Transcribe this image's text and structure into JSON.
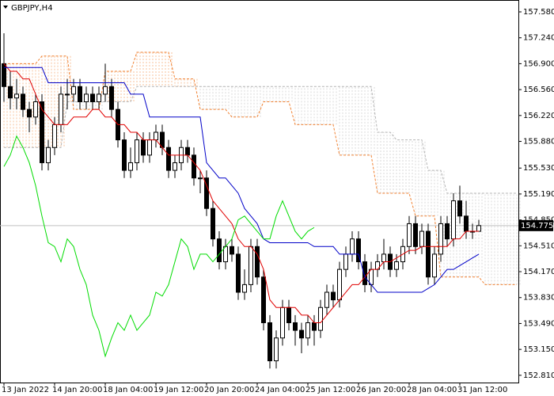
{
  "chart_data": {
    "type": "candlestick",
    "title": "GBPJPY,H4",
    "categories": [
      "13 Jan 2022",
      null,
      null,
      null,
      null,
      null,
      null,
      null,
      "14 Jan 20:00",
      null,
      null,
      null,
      null,
      null,
      null,
      null,
      "18 Jan 04:00",
      null,
      null,
      null,
      null,
      null,
      null,
      null,
      "19 Jan 12:00",
      null,
      null,
      null,
      null,
      null,
      null,
      null,
      "20 Jan 20:00",
      null,
      null,
      null,
      null,
      null,
      null,
      null,
      "24 Jan 04:00",
      null,
      null,
      null,
      null,
      null,
      null,
      null,
      "25 Jan 12:00",
      null,
      null,
      null,
      null,
      null,
      null,
      null,
      "26 Jan 20:00",
      null,
      null,
      null,
      null,
      null,
      null,
      null,
      "28 Jan 04:00",
      null,
      null,
      null,
      null,
      null,
      null,
      null,
      "31 Jan 12:00",
      null,
      null,
      null,
      null,
      null,
      null,
      null,
      null,
      null
    ],
    "open": [
      156.9,
      156.6,
      156.45,
      156.5,
      156.3,
      156.2,
      156.4,
      155.6,
      155.8,
      156.1,
      156.5,
      156.5,
      156.6,
      156.4,
      156.5,
      156.4,
      156.5,
      156.6,
      156.3,
      155.9,
      155.5,
      155.6,
      155.9,
      155.7,
      155.9,
      156.0,
      155.8,
      155.5,
      155.6,
      155.8,
      155.7,
      155.4,
      155.4,
      155.0,
      154.6,
      154.3,
      154.5,
      154.4,
      153.9,
      154.0,
      154.5,
      154.1,
      153.5,
      153.0,
      153.3,
      153.7,
      153.5,
      153.4,
      153.3,
      153.5,
      153.4,
      153.7,
      153.9,
      153.8,
      154.2,
      154.4,
      154.6,
      154.3,
      154.0,
      154.2,
      154.3,
      154.4,
      154.2,
      154.3,
      154.5,
      154.8,
      154.5,
      154.7,
      154.1,
      154.4,
      154.8,
      154.6,
      155.1,
      154.9,
      154.7,
      154.7,
      null,
      null,
      null,
      null,
      null,
      null
    ],
    "high": [
      157.3,
      156.8,
      156.7,
      156.6,
      156.4,
      156.5,
      156.5,
      155.9,
      156.2,
      156.6,
      156.7,
      156.7,
      156.7,
      156.6,
      156.6,
      156.6,
      156.9,
      156.7,
      156.4,
      156.0,
      155.8,
      156.0,
      156.0,
      156.0,
      156.1,
      156.1,
      155.9,
      155.7,
      155.9,
      155.9,
      155.8,
      155.5,
      155.5,
      155.1,
      154.7,
      154.6,
      154.6,
      154.5,
      154.2,
      154.6,
      154.6,
      154.2,
      153.6,
      153.4,
      153.8,
      153.8,
      153.6,
      153.5,
      153.6,
      153.6,
      153.8,
      154.0,
      154.0,
      154.3,
      154.5,
      154.7,
      154.7,
      154.4,
      154.3,
      154.4,
      154.6,
      154.5,
      154.4,
      154.6,
      154.9,
      154.9,
      154.8,
      154.8,
      154.5,
      154.9,
      154.9,
      155.2,
      155.3,
      155.1,
      154.8,
      154.85,
      null,
      null,
      null,
      null,
      null,
      null
    ],
    "low": [
      156.4,
      156.3,
      156.3,
      156.2,
      156.0,
      156.1,
      155.5,
      155.5,
      155.7,
      156.0,
      156.3,
      156.4,
      156.3,
      156.3,
      156.3,
      156.3,
      156.4,
      156.2,
      155.8,
      155.4,
      155.4,
      155.5,
      155.6,
      155.6,
      155.8,
      155.7,
      155.4,
      155.4,
      155.5,
      155.6,
      155.3,
      155.2,
      154.9,
      154.5,
      154.2,
      154.2,
      154.3,
      153.8,
      153.8,
      153.9,
      154.0,
      153.4,
      152.9,
      152.9,
      153.2,
      153.4,
      153.2,
      153.1,
      153.2,
      153.2,
      153.3,
      153.6,
      153.7,
      153.7,
      154.1,
      154.3,
      154.2,
      153.9,
      153.9,
      154.1,
      154.2,
      154.1,
      154.1,
      154.2,
      154.4,
      154.4,
      154.4,
      154.0,
      154.0,
      154.3,
      154.5,
      154.5,
      154.8,
      154.6,
      154.6,
      154.7,
      null,
      null,
      null,
      null,
      null,
      null
    ],
    "close": [
      156.6,
      156.45,
      156.5,
      156.3,
      156.2,
      156.4,
      155.6,
      155.8,
      156.1,
      156.5,
      156.5,
      156.6,
      156.4,
      156.5,
      156.4,
      156.5,
      156.6,
      156.3,
      155.9,
      155.5,
      155.6,
      155.9,
      155.7,
      155.9,
      156.0,
      155.8,
      155.5,
      155.6,
      155.8,
      155.7,
      155.4,
      155.4,
      155.0,
      154.6,
      154.3,
      154.5,
      154.4,
      153.9,
      154.0,
      154.5,
      154.1,
      153.5,
      153.0,
      153.3,
      153.7,
      153.5,
      153.4,
      153.3,
      153.5,
      153.4,
      153.7,
      153.9,
      153.8,
      154.2,
      154.4,
      154.6,
      154.3,
      154.0,
      154.2,
      154.3,
      154.4,
      154.2,
      154.3,
      154.5,
      154.8,
      154.5,
      154.7,
      154.1,
      154.4,
      154.8,
      154.6,
      155.1,
      154.9,
      154.7,
      154.7,
      154.775,
      null,
      null,
      null,
      null,
      null,
      null
    ],
    "lines": [
      {
        "color": "#e00000",
        "values": [
          156.9,
          156.8,
          156.8,
          156.7,
          156.7,
          156.5,
          156.3,
          156.2,
          156.1,
          156.1,
          156.1,
          156.2,
          156.2,
          156.2,
          156.3,
          156.3,
          156.2,
          156.2,
          156.1,
          156.1,
          156.0,
          156.0,
          155.9,
          155.9,
          155.9,
          155.8,
          155.7,
          155.7,
          155.7,
          155.7,
          155.6,
          155.5,
          155.3,
          155.1,
          155.0,
          154.9,
          154.8,
          154.6,
          154.5,
          154.5,
          154.4,
          154.2,
          153.8,
          153.7,
          153.7,
          153.7,
          153.7,
          153.6,
          153.6,
          153.5,
          153.5,
          153.6,
          153.7,
          153.8,
          153.9,
          154.0,
          154.0,
          154.1,
          154.2,
          154.2,
          154.3,
          154.3,
          154.35,
          154.4,
          154.45,
          154.45,
          154.5,
          154.5,
          154.5,
          154.5,
          154.5,
          154.6,
          154.6,
          154.7,
          154.7,
          154.7,
          null,
          null,
          null,
          null,
          null,
          null
        ]
      },
      {
        "color": "#0000c8",
        "values": [
          156.85,
          156.85,
          156.85,
          156.85,
          156.85,
          156.85,
          156.85,
          156.65,
          156.65,
          156.65,
          156.65,
          156.65,
          156.65,
          156.65,
          156.65,
          156.65,
          156.65,
          156.65,
          156.65,
          156.65,
          156.5,
          156.5,
          156.5,
          156.2,
          156.2,
          156.2,
          156.2,
          156.2,
          156.2,
          156.2,
          156.2,
          156.2,
          155.6,
          155.5,
          155.4,
          155.4,
          155.3,
          155.2,
          155.0,
          154.9,
          154.8,
          154.6,
          154.55,
          154.55,
          154.55,
          154.55,
          154.55,
          154.55,
          154.55,
          154.5,
          154.5,
          154.5,
          154.5,
          154.4,
          154.4,
          154.4,
          154.4,
          154.1,
          154.0,
          153.9,
          153.9,
          153.9,
          153.9,
          153.9,
          153.9,
          153.9,
          153.9,
          153.95,
          154.0,
          154.1,
          154.2,
          154.2,
          154.25,
          154.3,
          154.35,
          154.4,
          null,
          null,
          null,
          null,
          null,
          null
        ]
      },
      {
        "color": "#00dc00",
        "values": [
          155.55,
          155.7,
          155.95,
          155.8,
          155.6,
          155.3,
          154.9,
          154.55,
          154.5,
          154.3,
          154.6,
          154.5,
          154.2,
          154.0,
          153.6,
          153.4,
          153.06,
          153.3,
          153.5,
          153.4,
          153.6,
          153.4,
          153.5,
          153.6,
          153.9,
          153.85,
          154.0,
          154.3,
          154.6,
          154.5,
          154.2,
          154.4,
          154.4,
          154.3,
          154.4,
          154.5,
          154.6,
          154.85,
          154.9,
          154.8,
          154.7,
          154.6,
          154.6,
          154.9,
          155.1,
          154.9,
          154.7,
          154.6,
          154.7,
          154.75,
          null,
          null,
          null,
          null,
          null,
          null,
          null,
          null,
          null,
          null,
          null,
          null,
          null,
          null,
          null,
          null,
          null,
          null,
          null,
          null,
          null,
          null,
          null,
          null,
          null,
          null,
          null,
          null,
          null,
          null,
          null,
          null
        ]
      }
    ],
    "cloud": {
      "span_a": {
        "color": "#f08030",
        "values": [
          156.9,
          156.9,
          156.9,
          156.9,
          156.9,
          156.9,
          157.0,
          157.0,
          157.0,
          157.0,
          157.0,
          156.3,
          156.3,
          156.3,
          156.3,
          156.3,
          156.8,
          156.8,
          156.8,
          156.8,
          156.8,
          157.05,
          157.05,
          157.05,
          157.05,
          157.05,
          157.05,
          156.7,
          156.7,
          156.7,
          156.7,
          156.3,
          156.3,
          156.3,
          156.3,
          156.3,
          156.2,
          156.2,
          156.2,
          156.2,
          156.2,
          156.4,
          156.4,
          156.4,
          156.4,
          156.4,
          156.1,
          156.1,
          156.1,
          156.1,
          156.1,
          156.1,
          156.1,
          155.7,
          155.7,
          155.7,
          155.7,
          155.7,
          155.7,
          155.2,
          155.2,
          155.2,
          155.2,
          155.2,
          155.2,
          154.9,
          154.9,
          154.9,
          154.9,
          154.1,
          154.1,
          154.1,
          154.1,
          154.1,
          154.1,
          154.1,
          154.0,
          154.0,
          154.0,
          154.0,
          154.0,
          154.0
        ]
      },
      "span_b": {
        "color": "#b4b4b4",
        "values": [
          155.8,
          155.8,
          155.8,
          155.8,
          155.8,
          155.8,
          155.8,
          155.8,
          155.8,
          155.8,
          156.4,
          156.4,
          156.4,
          156.4,
          156.4,
          156.4,
          156.4,
          156.4,
          156.4,
          156.4,
          156.4,
          156.6,
          156.6,
          156.6,
          156.6,
          156.6,
          156.6,
          156.6,
          156.6,
          156.6,
          156.6,
          156.6,
          156.6,
          156.6,
          156.6,
          156.6,
          156.6,
          156.6,
          156.6,
          156.6,
          156.6,
          156.6,
          156.6,
          156.6,
          156.6,
          156.6,
          156.6,
          156.6,
          156.6,
          156.6,
          156.6,
          156.6,
          156.6,
          156.6,
          156.6,
          156.6,
          156.6,
          156.6,
          156.6,
          156.0,
          156.0,
          156.0,
          155.9,
          155.9,
          155.9,
          155.9,
          155.9,
          155.5,
          155.5,
          155.5,
          155.2,
          155.2,
          155.2,
          155.2,
          155.2,
          155.2,
          155.2,
          155.2,
          155.2,
          155.2,
          155.2,
          155.2
        ]
      }
    },
    "last_price": 154.775,
    "ylim": [
      152.715,
      157.736
    ],
    "yticks": [
      {
        "value": 157.58,
        "label": "157.580"
      },
      {
        "value": 157.24,
        "label": "157.240"
      },
      {
        "value": 156.9,
        "label": "156.900"
      },
      {
        "value": 156.56,
        "label": "156.560"
      },
      {
        "value": 156.22,
        "label": "156.220"
      },
      {
        "value": 155.88,
        "label": "155.880"
      },
      {
        "value": 155.53,
        "label": "155.530"
      },
      {
        "value": 155.19,
        "label": "155.190"
      },
      {
        "value": 154.85,
        "label": "154.850"
      },
      {
        "value": 154.51,
        "label": "154.510"
      },
      {
        "value": 154.17,
        "label": "154.170"
      },
      {
        "value": 153.83,
        "label": "153.830"
      },
      {
        "value": 153.49,
        "label": "153.490"
      },
      {
        "value": 153.15,
        "label": "153.150"
      },
      {
        "value": 152.81,
        "label": "152.810"
      }
    ]
  }
}
